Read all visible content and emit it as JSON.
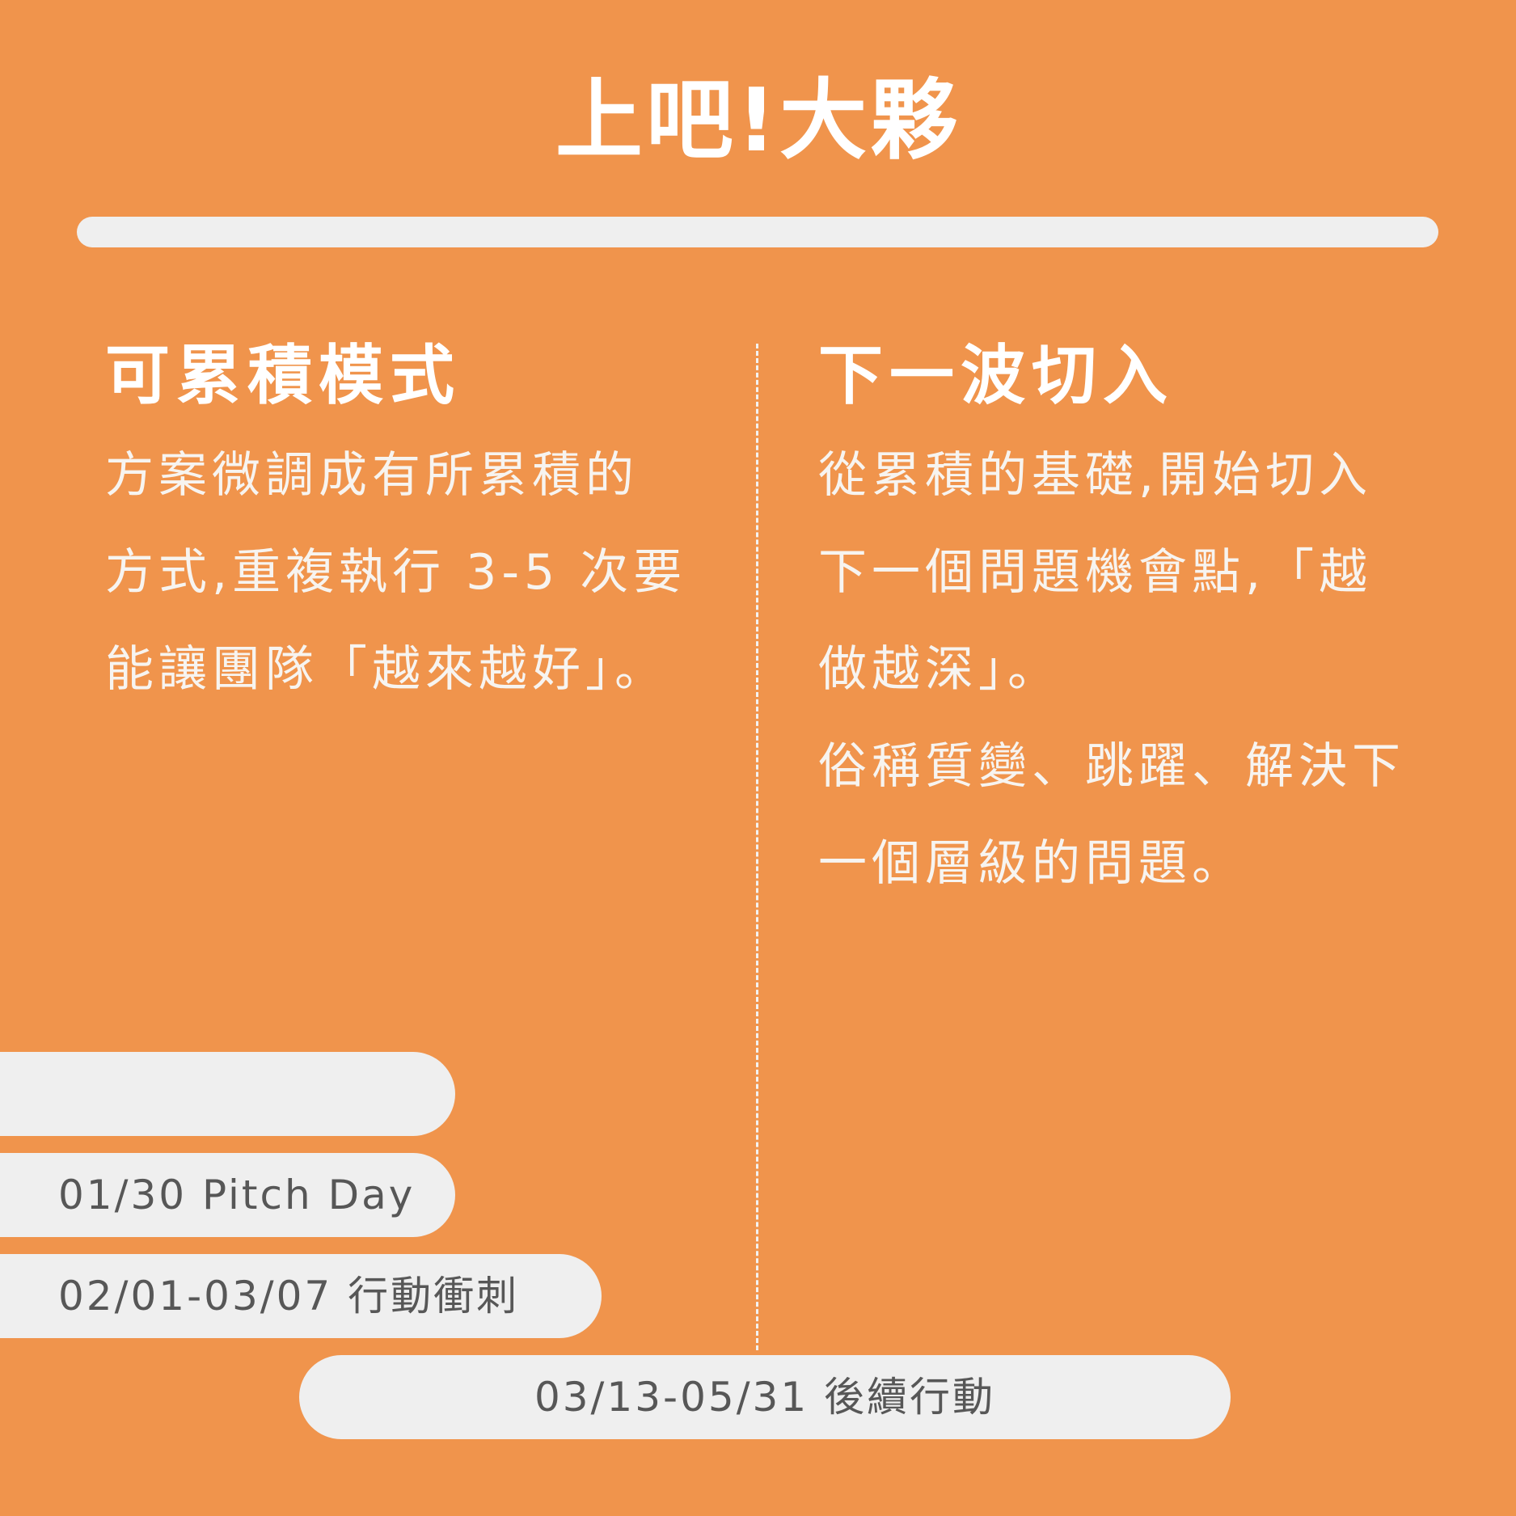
{
  "title": "上吧!大夥",
  "left_column": {
    "heading": "可累積模式",
    "lines": [
      "方案微調成有所累積的",
      "方式,重複執行 3-5 次要",
      "能讓團隊「越來越好」。"
    ]
  },
  "right_column": {
    "heading": "下一波切入",
    "lines": [
      "從累積的基礎,開始切入",
      "下一個問題機會點,「越",
      "做越深」。",
      "俗稱質變、跳躍、解決下",
      "一個層級的問題。"
    ]
  },
  "timeline": {
    "items": [
      {
        "label": ""
      },
      {
        "label": "01/30 Pitch Day"
      },
      {
        "label": "02/01-03/07  行動衝刺"
      },
      {
        "label": "03/13-05/31  後續行動"
      }
    ]
  },
  "colors": {
    "background": "#F0944C",
    "bar": "#EFEFEF",
    "pill_text": "#575757",
    "text": "#FFFFFF"
  }
}
